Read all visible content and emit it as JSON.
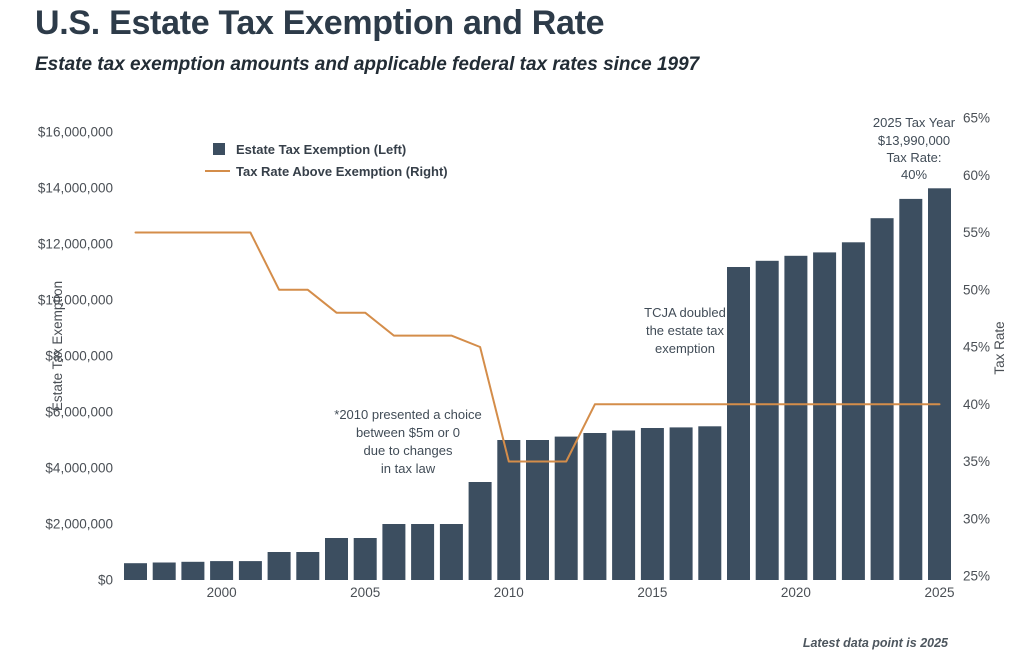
{
  "page": {
    "title": "U.S. Estate Tax Exemption and Rate",
    "subtitle": "Estate tax exemption amounts and applicable federal tax rates since 1997",
    "footer_note": "Latest data point is 2025"
  },
  "colors": {
    "bar": "#3c4e60",
    "line": "#d48d4a",
    "tick_text": "#4a4f55",
    "annotation_text": "#414c57"
  },
  "legend": {
    "items": [
      {
        "label": "Estate Tax Exemption (Left)",
        "marker": "square",
        "color": "#3c4e60"
      },
      {
        "label": "Tax Rate Above Exemption (Right)",
        "marker": "line",
        "color": "#d48d4a"
      }
    ]
  },
  "axes": {
    "left": {
      "title": "Estate Tax Exemption",
      "tick_labels": [
        "$16,000,000",
        "$14,000,000",
        "$12,000,000",
        "$10,000,000",
        "$8,000,000",
        "$6,000,000",
        "$4,000,000",
        "$2,000,000",
        "$0"
      ],
      "tick_values": [
        16000000,
        14000000,
        12000000,
        10000000,
        8000000,
        6000000,
        4000000,
        2000000,
        0
      ]
    },
    "right": {
      "title": "Tax Rate",
      "tick_labels": [
        "65%",
        "60%",
        "55%",
        "50%",
        "45%",
        "40%",
        "35%",
        "30%",
        "25%"
      ],
      "tick_values": [
        65,
        60,
        55,
        50,
        45,
        40,
        35,
        30,
        25
      ]
    },
    "x": {
      "tick_labels": [
        "2000",
        "2005",
        "2010",
        "2015",
        "2020",
        "2025"
      ],
      "tick_values": [
        2000,
        2005,
        2010,
        2015,
        2020,
        2025
      ]
    }
  },
  "annotations": {
    "choice_2010": {
      "lines": [
        "*2010 presented a choice",
        "between $5m or 0",
        "due to changes",
        "in tax law"
      ]
    },
    "tcja": {
      "lines": [
        "TCJA doubled",
        "the estate tax",
        "exemption"
      ]
    },
    "latest": {
      "lines": [
        "2025 Tax Year",
        "$13,990,000",
        "Tax Rate:",
        "40%"
      ]
    }
  },
  "chart_data": {
    "type": "bar",
    "title": "U.S. Estate Tax Exemption and Rate",
    "subtitle": "Estate tax exemption amounts and applicable federal tax rates since 1997",
    "x": [
      1997,
      1998,
      1999,
      2000,
      2001,
      2002,
      2003,
      2004,
      2005,
      2006,
      2007,
      2008,
      2009,
      2010,
      2011,
      2012,
      2013,
      2014,
      2015,
      2016,
      2017,
      2018,
      2019,
      2020,
      2021,
      2022,
      2023,
      2024,
      2025
    ],
    "series": [
      {
        "name": "Estate Tax Exemption (Left)",
        "type": "bar",
        "axis": "left",
        "values": [
          600000,
          625000,
          650000,
          675000,
          675000,
          1000000,
          1000000,
          1500000,
          1500000,
          2000000,
          2000000,
          2000000,
          3500000,
          5000000,
          5000000,
          5120000,
          5250000,
          5340000,
          5430000,
          5450000,
          5490000,
          11180000,
          11400000,
          11580000,
          11700000,
          12060000,
          12920000,
          13610000,
          13990000
        ]
      },
      {
        "name": "Tax Rate Above Exemption (Right)",
        "type": "line",
        "axis": "right",
        "values": [
          55,
          55,
          55,
          55,
          55,
          50,
          50,
          48,
          48,
          46,
          46,
          46,
          45,
          35,
          35,
          35,
          40,
          40,
          40,
          40,
          40,
          40,
          40,
          40,
          40,
          40,
          40,
          40,
          40
        ]
      }
    ],
    "ylabel_left": "Estate Tax Exemption",
    "ylabel_right": "Tax Rate",
    "left_axis_range": [
      0,
      16000000
    ],
    "right_axis_range": [
      25,
      65
    ],
    "grid": false,
    "legend_position": "inside-upper-left"
  }
}
